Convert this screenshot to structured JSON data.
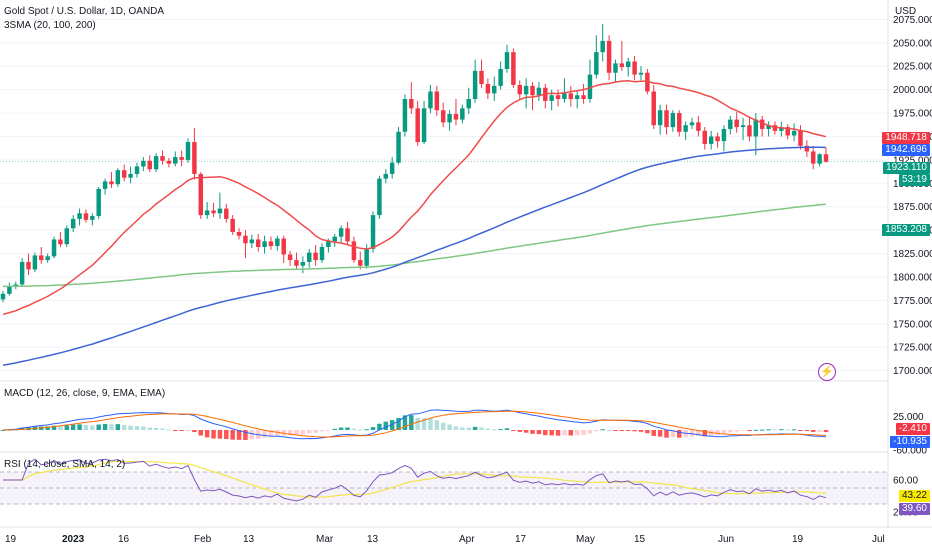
{
  "chart_data": {
    "type": "candlestick",
    "title": "Gold Spot / U.S. Dollar, 1D, OANDA",
    "indicator_title": "3SMA (20, 100, 200)",
    "currency": "USD",
    "price_ticks": [
      "2075.000",
      "2050.000",
      "2025.000",
      "2000.000",
      "1975.000",
      "1950.000",
      "1925.000",
      "1900.000",
      "1875.000",
      "1850.000",
      "1825.000",
      "1800.000",
      "1775.000",
      "1750.000",
      "1725.000",
      "1700.000"
    ],
    "x_ticks": [
      "19",
      "2023",
      "16",
      "Feb",
      "13",
      "Mar",
      "13",
      "Apr",
      "17",
      "May",
      "15",
      "Jun",
      "19",
      "Jul"
    ],
    "ylim": [
      1690,
      2085
    ],
    "tags": {
      "sma20": {
        "text": "1948.718",
        "color": "#f23645"
      },
      "sma100": {
        "text": "1942.696",
        "color": "#2962ff"
      },
      "last": {
        "text": "1923.110",
        "color": "#089981"
      },
      "countdown": {
        "text": "53:19",
        "color": "#089981"
      },
      "sma200": {
        "text": "1853.208",
        "color": "#089981"
      }
    },
    "macd": {
      "title": "MACD (12, 26, close, 9, EMA, EMA)",
      "ticks": [
        "25.000",
        "-60.000"
      ],
      "tag_signal": "-2.410",
      "tag_macd": "-10.935"
    },
    "rsi": {
      "title": "RSI (14, close, SMA, 14, 2)",
      "ticks": [
        "60.00",
        "20.00"
      ],
      "tag_ma": "43.22",
      "tag_rsi": "39.60"
    },
    "ohlc": [
      {
        "o": 1776,
        "h": 1785,
        "l": 1773,
        "c": 1782
      },
      {
        "o": 1782,
        "h": 1794,
        "l": 1780,
        "c": 1790
      },
      {
        "o": 1790,
        "h": 1795,
        "l": 1787,
        "c": 1792
      },
      {
        "o": 1792,
        "h": 1820,
        "l": 1790,
        "c": 1816
      },
      {
        "o": 1816,
        "h": 1825,
        "l": 1802,
        "c": 1808
      },
      {
        "o": 1808,
        "h": 1826,
        "l": 1805,
        "c": 1823
      },
      {
        "o": 1823,
        "h": 1832,
        "l": 1814,
        "c": 1818
      },
      {
        "o": 1818,
        "h": 1825,
        "l": 1815,
        "c": 1822
      },
      {
        "o": 1822,
        "h": 1843,
        "l": 1820,
        "c": 1840
      },
      {
        "o": 1840,
        "h": 1848,
        "l": 1832,
        "c": 1835
      },
      {
        "o": 1835,
        "h": 1855,
        "l": 1832,
        "c": 1852
      },
      {
        "o": 1852,
        "h": 1866,
        "l": 1848,
        "c": 1862
      },
      {
        "o": 1862,
        "h": 1873,
        "l": 1855,
        "c": 1868
      },
      {
        "o": 1868,
        "h": 1872,
        "l": 1858,
        "c": 1861
      },
      {
        "o": 1861,
        "h": 1868,
        "l": 1855,
        "c": 1865
      },
      {
        "o": 1865,
        "h": 1896,
        "l": 1862,
        "c": 1894
      },
      {
        "o": 1894,
        "h": 1905,
        "l": 1888,
        "c": 1902
      },
      {
        "o": 1902,
        "h": 1912,
        "l": 1895,
        "c": 1899
      },
      {
        "o": 1899,
        "h": 1916,
        "l": 1896,
        "c": 1914
      },
      {
        "o": 1914,
        "h": 1920,
        "l": 1902,
        "c": 1906
      },
      {
        "o": 1906,
        "h": 1918,
        "l": 1900,
        "c": 1910
      },
      {
        "o": 1910,
        "h": 1922,
        "l": 1906,
        "c": 1918
      },
      {
        "o": 1918,
        "h": 1928,
        "l": 1913,
        "c": 1924
      },
      {
        "o": 1924,
        "h": 1930,
        "l": 1912,
        "c": 1915
      },
      {
        "o": 1915,
        "h": 1932,
        "l": 1912,
        "c": 1929
      },
      {
        "o": 1929,
        "h": 1935,
        "l": 1920,
        "c": 1924
      },
      {
        "o": 1924,
        "h": 1927,
        "l": 1917,
        "c": 1921
      },
      {
        "o": 1921,
        "h": 1934,
        "l": 1918,
        "c": 1928
      },
      {
        "o": 1928,
        "h": 1935,
        "l": 1918,
        "c": 1925
      },
      {
        "o": 1925,
        "h": 1948,
        "l": 1922,
        "c": 1944
      },
      {
        "o": 1944,
        "h": 1959,
        "l": 1904,
        "c": 1910
      },
      {
        "o": 1910,
        "h": 1912,
        "l": 1862,
        "c": 1866
      },
      {
        "o": 1866,
        "h": 1880,
        "l": 1862,
        "c": 1871
      },
      {
        "o": 1871,
        "h": 1879,
        "l": 1864,
        "c": 1868
      },
      {
        "o": 1868,
        "h": 1890,
        "l": 1862,
        "c": 1873
      },
      {
        "o": 1873,
        "h": 1878,
        "l": 1858,
        "c": 1862
      },
      {
        "o": 1862,
        "h": 1866,
        "l": 1845,
        "c": 1848
      },
      {
        "o": 1848,
        "h": 1852,
        "l": 1840,
        "c": 1844
      },
      {
        "o": 1844,
        "h": 1850,
        "l": 1820,
        "c": 1836
      },
      {
        "o": 1836,
        "h": 1845,
        "l": 1831,
        "c": 1840
      },
      {
        "o": 1840,
        "h": 1846,
        "l": 1827,
        "c": 1832
      },
      {
        "o": 1832,
        "h": 1844,
        "l": 1825,
        "c": 1838
      },
      {
        "o": 1838,
        "h": 1843,
        "l": 1829,
        "c": 1833
      },
      {
        "o": 1833,
        "h": 1844,
        "l": 1828,
        "c": 1841
      },
      {
        "o": 1841,
        "h": 1844,
        "l": 1815,
        "c": 1824
      },
      {
        "o": 1824,
        "h": 1828,
        "l": 1812,
        "c": 1818
      },
      {
        "o": 1818,
        "h": 1826,
        "l": 1809,
        "c": 1812
      },
      {
        "o": 1812,
        "h": 1822,
        "l": 1804,
        "c": 1816
      },
      {
        "o": 1816,
        "h": 1830,
        "l": 1810,
        "c": 1826
      },
      {
        "o": 1826,
        "h": 1834,
        "l": 1812,
        "c": 1818
      },
      {
        "o": 1818,
        "h": 1836,
        "l": 1815,
        "c": 1832
      },
      {
        "o": 1832,
        "h": 1841,
        "l": 1826,
        "c": 1838
      },
      {
        "o": 1838,
        "h": 1846,
        "l": 1832,
        "c": 1843
      },
      {
        "o": 1843,
        "h": 1855,
        "l": 1836,
        "c": 1852
      },
      {
        "o": 1852,
        "h": 1859,
        "l": 1834,
        "c": 1838
      },
      {
        "o": 1838,
        "h": 1843,
        "l": 1815,
        "c": 1818
      },
      {
        "o": 1818,
        "h": 1827,
        "l": 1808,
        "c": 1812
      },
      {
        "o": 1812,
        "h": 1835,
        "l": 1809,
        "c": 1830
      },
      {
        "o": 1830,
        "h": 1870,
        "l": 1826,
        "c": 1866
      },
      {
        "o": 1866,
        "h": 1908,
        "l": 1862,
        "c": 1905
      },
      {
        "o": 1905,
        "h": 1915,
        "l": 1900,
        "c": 1910
      },
      {
        "o": 1910,
        "h": 1928,
        "l": 1905,
        "c": 1922
      },
      {
        "o": 1922,
        "h": 1960,
        "l": 1920,
        "c": 1955
      },
      {
        "o": 1955,
        "h": 1995,
        "l": 1950,
        "c": 1990
      },
      {
        "o": 1990,
        "h": 2008,
        "l": 1974,
        "c": 1980
      },
      {
        "o": 1980,
        "h": 1988,
        "l": 1940,
        "c": 1944
      },
      {
        "o": 1944,
        "h": 1988,
        "l": 1942,
        "c": 1980
      },
      {
        "o": 1980,
        "h": 2005,
        "l": 1975,
        "c": 1998
      },
      {
        "o": 1998,
        "h": 2004,
        "l": 1972,
        "c": 1978
      },
      {
        "o": 1978,
        "h": 1986,
        "l": 1960,
        "c": 1965
      },
      {
        "o": 1965,
        "h": 1978,
        "l": 1956,
        "c": 1974
      },
      {
        "o": 1974,
        "h": 1990,
        "l": 1962,
        "c": 1968
      },
      {
        "o": 1968,
        "h": 1984,
        "l": 1964,
        "c": 1980
      },
      {
        "o": 1980,
        "h": 2002,
        "l": 1974,
        "c": 1990
      },
      {
        "o": 1990,
        "h": 2032,
        "l": 1986,
        "c": 2020
      },
      {
        "o": 2020,
        "h": 2032,
        "l": 2002,
        "c": 2006
      },
      {
        "o": 2006,
        "h": 2012,
        "l": 1990,
        "c": 1996
      },
      {
        "o": 1996,
        "h": 2014,
        "l": 1988,
        "c": 2004
      },
      {
        "o": 2004,
        "h": 2030,
        "l": 2000,
        "c": 2022
      },
      {
        "o": 2022,
        "h": 2048,
        "l": 2018,
        "c": 2040
      },
      {
        "o": 2040,
        "h": 2044,
        "l": 2002,
        "c": 2005
      },
      {
        "o": 2005,
        "h": 2010,
        "l": 1990,
        "c": 1995
      },
      {
        "o": 1995,
        "h": 2012,
        "l": 1980,
        "c": 2004
      },
      {
        "o": 2004,
        "h": 2008,
        "l": 1978,
        "c": 1994
      },
      {
        "o": 1994,
        "h": 2008,
        "l": 1988,
        "c": 2002
      },
      {
        "o": 2002,
        "h": 2006,
        "l": 1980,
        "c": 1988
      },
      {
        "o": 1988,
        "h": 2000,
        "l": 1978,
        "c": 1994
      },
      {
        "o": 1994,
        "h": 2000,
        "l": 1982,
        "c": 1990
      },
      {
        "o": 1990,
        "h": 2012,
        "l": 1986,
        "c": 1996
      },
      {
        "o": 1996,
        "h": 2004,
        "l": 1982,
        "c": 1990
      },
      {
        "o": 1990,
        "h": 1998,
        "l": 1980,
        "c": 1994
      },
      {
        "o": 1994,
        "h": 2006,
        "l": 1985,
        "c": 1990
      },
      {
        "o": 1990,
        "h": 2032,
        "l": 1986,
        "c": 2016
      },
      {
        "o": 2016,
        "h": 2058,
        "l": 2012,
        "c": 2040
      },
      {
        "o": 2040,
        "h": 2070,
        "l": 2030,
        "c": 2052
      },
      {
        "o": 2052,
        "h": 2058,
        "l": 2010,
        "c": 2018
      },
      {
        "o": 2018,
        "h": 2032,
        "l": 2008,
        "c": 2028
      },
      {
        "o": 2028,
        "h": 2052,
        "l": 2020,
        "c": 2024
      },
      {
        "o": 2024,
        "h": 2034,
        "l": 2014,
        "c": 2030
      },
      {
        "o": 2030,
        "h": 2036,
        "l": 2010,
        "c": 2016
      },
      {
        "o": 2016,
        "h": 2025,
        "l": 2010,
        "c": 2018
      },
      {
        "o": 2018,
        "h": 2022,
        "l": 1995,
        "c": 1998
      },
      {
        "o": 1998,
        "h": 2005,
        "l": 1958,
        "c": 1962
      },
      {
        "o": 1962,
        "h": 1984,
        "l": 1952,
        "c": 1978
      },
      {
        "o": 1978,
        "h": 1984,
        "l": 1952,
        "c": 1960
      },
      {
        "o": 1960,
        "h": 1978,
        "l": 1955,
        "c": 1975
      },
      {
        "o": 1975,
        "h": 1978,
        "l": 1950,
        "c": 1955
      },
      {
        "o": 1955,
        "h": 1966,
        "l": 1946,
        "c": 1962
      },
      {
        "o": 1962,
        "h": 1970,
        "l": 1958,
        "c": 1965
      },
      {
        "o": 1965,
        "h": 1972,
        "l": 1950,
        "c": 1956
      },
      {
        "o": 1956,
        "h": 1960,
        "l": 1936,
        "c": 1942
      },
      {
        "o": 1942,
        "h": 1956,
        "l": 1936,
        "c": 1950
      },
      {
        "o": 1950,
        "h": 1954,
        "l": 1938,
        "c": 1945
      },
      {
        "o": 1945,
        "h": 1962,
        "l": 1934,
        "c": 1958
      },
      {
        "o": 1958,
        "h": 1972,
        "l": 1952,
        "c": 1968
      },
      {
        "o": 1968,
        "h": 1976,
        "l": 1954,
        "c": 1960
      },
      {
        "o": 1960,
        "h": 1970,
        "l": 1946,
        "c": 1962
      },
      {
        "o": 1962,
        "h": 1970,
        "l": 1945,
        "c": 1950
      },
      {
        "o": 1950,
        "h": 1975,
        "l": 1930,
        "c": 1968
      },
      {
        "o": 1968,
        "h": 1972,
        "l": 1950,
        "c": 1958
      },
      {
        "o": 1958,
        "h": 1966,
        "l": 1950,
        "c": 1962
      },
      {
        "o": 1962,
        "h": 1966,
        "l": 1952,
        "c": 1956
      },
      {
        "o": 1956,
        "h": 1966,
        "l": 1950,
        "c": 1960
      },
      {
        "o": 1960,
        "h": 1963,
        "l": 1947,
        "c": 1951
      },
      {
        "o": 1951,
        "h": 1964,
        "l": 1945,
        "c": 1956
      },
      {
        "o": 1956,
        "h": 1962,
        "l": 1936,
        "c": 1940
      },
      {
        "o": 1940,
        "h": 1946,
        "l": 1928,
        "c": 1934
      },
      {
        "o": 1934,
        "h": 1940,
        "l": 1915,
        "c": 1921
      },
      {
        "o": 1921,
        "h": 1932,
        "l": 1918,
        "c": 1931
      },
      {
        "o": 1931,
        "h": 1938,
        "l": 1922,
        "c": 1923
      }
    ]
  }
}
